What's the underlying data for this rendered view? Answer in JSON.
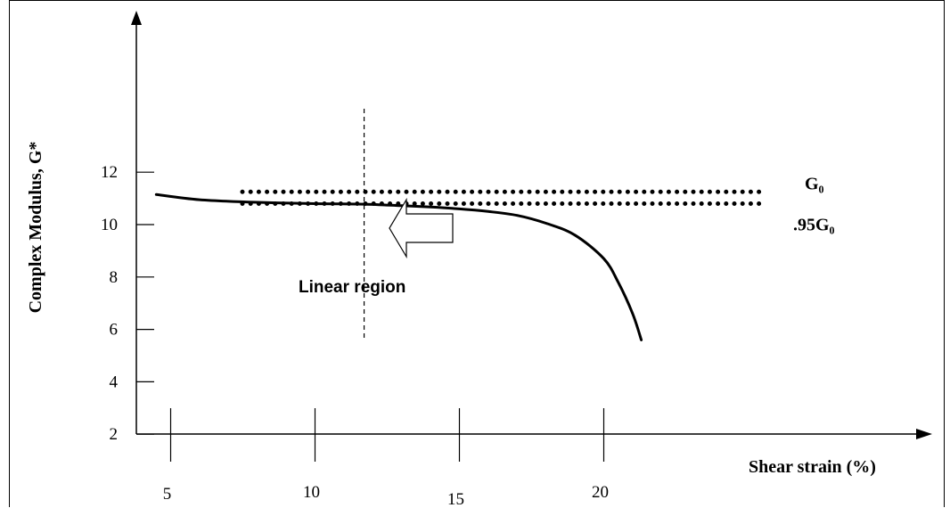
{
  "chart_data": {
    "type": "line",
    "title": "",
    "xlabel": "Shear strain (%)",
    "ylabel": "Complex Modulus, G*",
    "x_ticks": [
      "5",
      "10",
      "15",
      "20"
    ],
    "y_ticks": [
      "2",
      "4",
      "6",
      "8",
      "10",
      "12"
    ],
    "xlim": [
      0,
      22.5
    ],
    "ylim": [
      0,
      12
    ],
    "series": [
      {
        "x": [
          4.5,
          6,
          8,
          10,
          11.7,
          13,
          14,
          15,
          16,
          17,
          18,
          19,
          20,
          20.5,
          21,
          21.3
        ],
        "y": [
          11.15,
          10.95,
          10.85,
          10.8,
          10.78,
          10.72,
          10.67,
          10.6,
          10.5,
          10.35,
          10.05,
          9.6,
          8.7,
          7.8,
          6.6,
          5.6
        ]
      }
    ],
    "reference_lines": [
      {
        "label": "G₀",
        "y": 11.25
      },
      {
        "label": ".95G₀",
        "y": 10.8
      }
    ],
    "vertical_marker": {
      "x": 11.7
    },
    "annotation": {
      "text": "Linear region",
      "arrow": "left"
    }
  }
}
